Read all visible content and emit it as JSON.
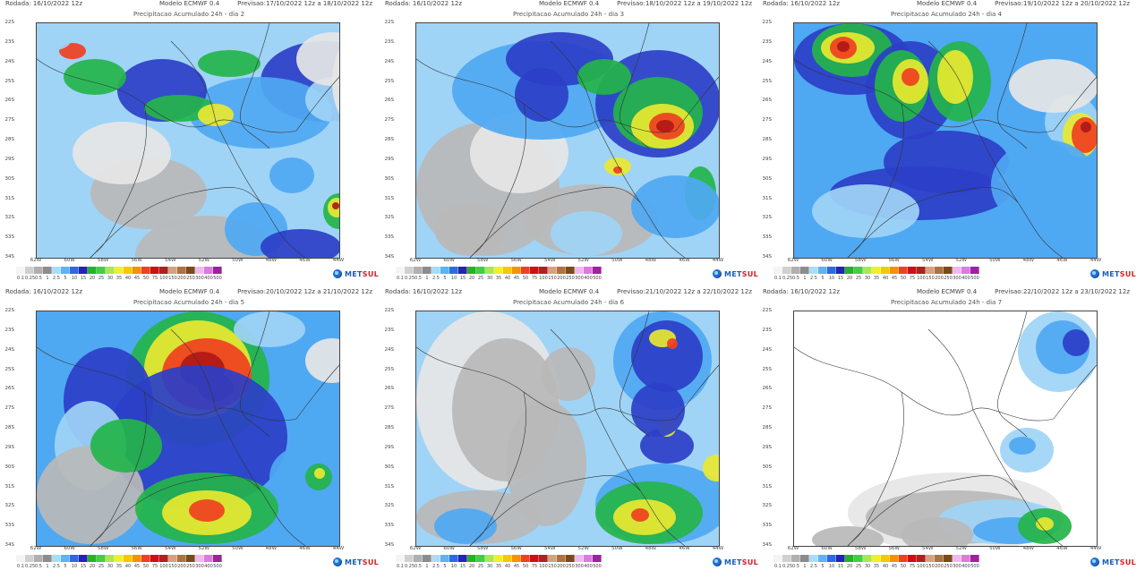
{
  "panels": [
    {
      "rodada": "Rodada: 16/10/2022 12z",
      "modelo": "Modelo ECMWF 0.4",
      "previsao": "Previsao:17/10/2022 12z a 18/10/2022 12z",
      "title": "Precipitacao Acumulado 24h - dia 2"
    },
    {
      "rodada": "Rodada: 16/10/2022 12z",
      "modelo": "Modelo ECMWF 0.4",
      "previsao": "Previsao:18/10/2022 12z a 19/10/2022 12z",
      "title": "Precipitacao Acumulado 24h - dia 3"
    },
    {
      "rodada": "Rodada: 16/10/2022 12z",
      "modelo": "Modelo ECMWF 0.4",
      "previsao": "Previsao:19/10/2022 12z a 20/10/2022 12z",
      "title": "Precipitacao Acumulado 24h - dia 4"
    },
    {
      "rodada": "Rodada: 16/10/2022 12z",
      "modelo": "Modelo ECMWF 0.4",
      "previsao": "Previsao:20/10/2022 12z a 21/10/2022 12z",
      "title": "Precipitacao Acumulado 24h - dia 5"
    },
    {
      "rodada": "Rodada: 16/10/2022 12z",
      "modelo": "Modelo ECMWF 0.4",
      "previsao": "Previsao:21/10/2022 12z a 22/10/2022 12z",
      "title": "Precipitacao Acumulado 24h - dia 6"
    },
    {
      "rodada": "Rodada: 16/10/2022 12z",
      "modelo": "Modelo ECMWF 0.4",
      "previsao": "Previsao:22/10/2022 12z a 23/10/2022 12z",
      "title": "Precipitacao Acumulado 24h - dia 7"
    }
  ],
  "lat_labels": [
    "22S",
    "23S",
    "24S",
    "25S",
    "26S",
    "27S",
    "28S",
    "29S",
    "30S",
    "31S",
    "32S",
    "33S",
    "34S"
  ],
  "lon_labels": [
    "62W",
    "60W",
    "58W",
    "56W",
    "54W",
    "52W",
    "50W",
    "48W",
    "46W",
    "44W"
  ],
  "colorbar": {
    "labels": [
      "0.1",
      "0.25",
      "0.5",
      "1",
      "2.5",
      "5",
      "10",
      "15",
      "20",
      "25",
      "30",
      "35",
      "40",
      "45",
      "50",
      "75",
      "100",
      "150",
      "200",
      "250",
      "300",
      "400",
      "500"
    ],
    "colors": [
      "#f4f4f4",
      "#d0d0d0",
      "#b0b0b0",
      "#8c8c8c",
      "#a8dcfa",
      "#5ab4f5",
      "#2a6ae8",
      "#2424b4",
      "#23b423",
      "#40d040",
      "#a8e850",
      "#f0f028",
      "#f8c800",
      "#f89000",
      "#f04020",
      "#d01010",
      "#b02020",
      "#d8a080",
      "#b07040",
      "#7a4a1a",
      "#f0b8f0",
      "#e078e0",
      "#a020a0"
    ]
  },
  "logo": {
    "prefix": "MET",
    "suffix": "SUL"
  },
  "colors": {
    "background": "#2a6ae8",
    "heavy": "#d01010",
    "green": "#23b423"
  }
}
